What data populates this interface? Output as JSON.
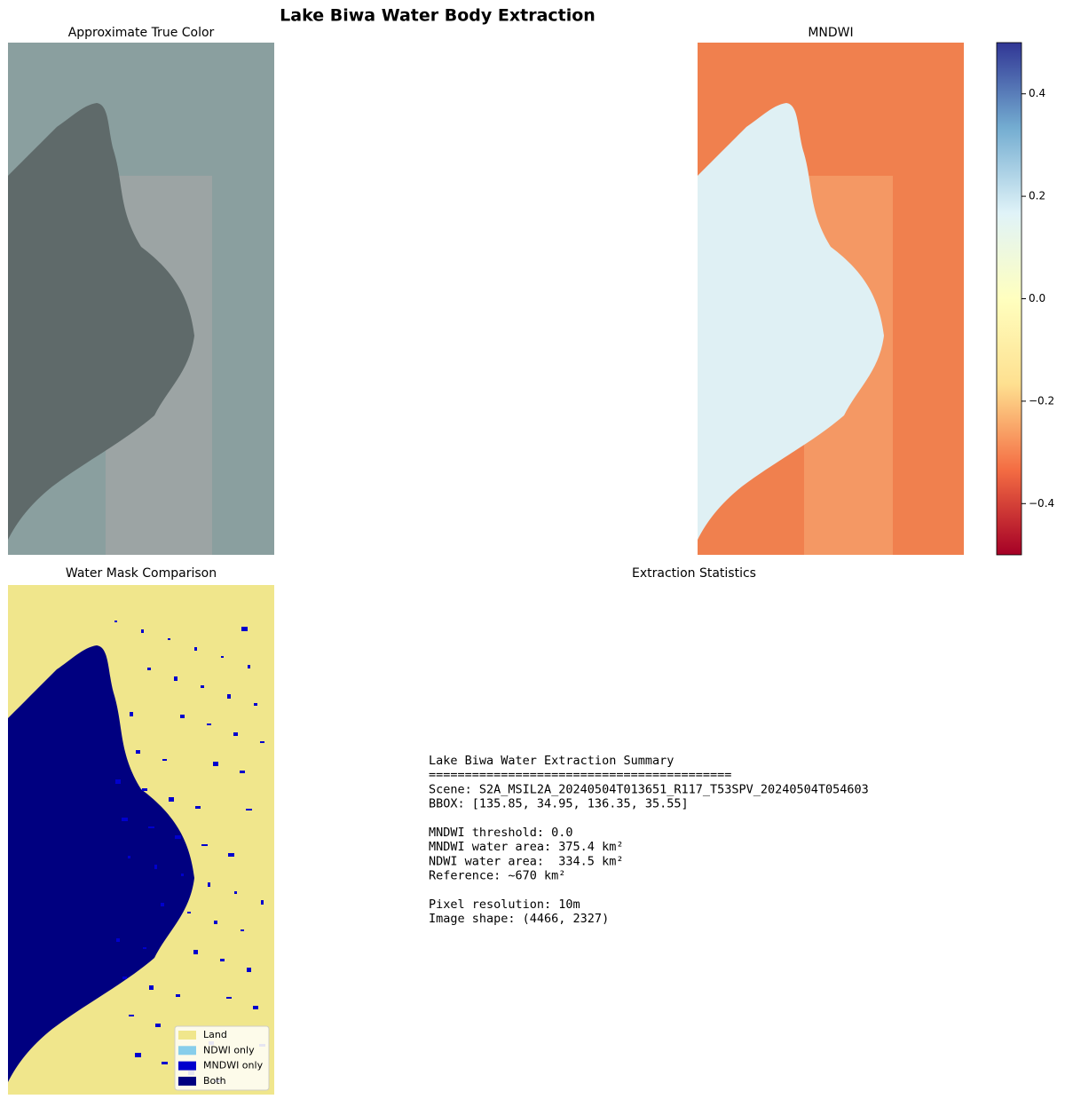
{
  "chart_data": {
    "type": "figure",
    "title": "Lake Biwa Water Body Extraction",
    "true_color": {
      "title": "Approximate True Color"
    },
    "mndwi": {
      "title": "MNDWI",
      "colorbar": {
        "lim": [
          -0.5,
          0.5
        ],
        "ticks": [
          {
            "value": -0.4,
            "label": "−0.4"
          },
          {
            "value": -0.2,
            "label": "−0.2"
          },
          {
            "value": 0,
            "label": "0.0"
          },
          0.2,
          0.4
        ],
        "colors": [
          "#a50026",
          "#f46d43",
          "#fee090",
          "#ffffbf",
          "#e0f3f8",
          "#74add1",
          "#313695"
        ]
      }
    },
    "mask": {
      "title": "Water Mask Comparison",
      "legend": [
        {
          "name": "Land",
          "color": "#f0e68c"
        },
        {
          "name": "NDWI only",
          "color": "#87ceeb"
        },
        {
          "name": "MNDWI only",
          "color": "#0000cd"
        },
        {
          "name": "Both",
          "color": "#000080"
        }
      ],
      "legend_corner": "lower right"
    },
    "stats": {
      "title": "Extraction Statistics",
      "paragraphs": [
        [
          "Lake Biwa Water Extraction Summary",
          "==========================================",
          "Scene: S2A_MSIL2A_20240504T013651_R117_T53SPV_20240504T054603",
          "BBOX: [135.85, 34.95, 136.35, 35.55]"
        ],
        [
          "MNDWI threshold: 0.0",
          "MNDWI water area: 375.4 km²",
          "NDWI water area:  334.5 km²",
          "Reference: ~670 km²"
        ],
        [
          "Pixel resolution: 10m",
          "Image shape: (4466, 2327)"
        ]
      ]
    }
  }
}
